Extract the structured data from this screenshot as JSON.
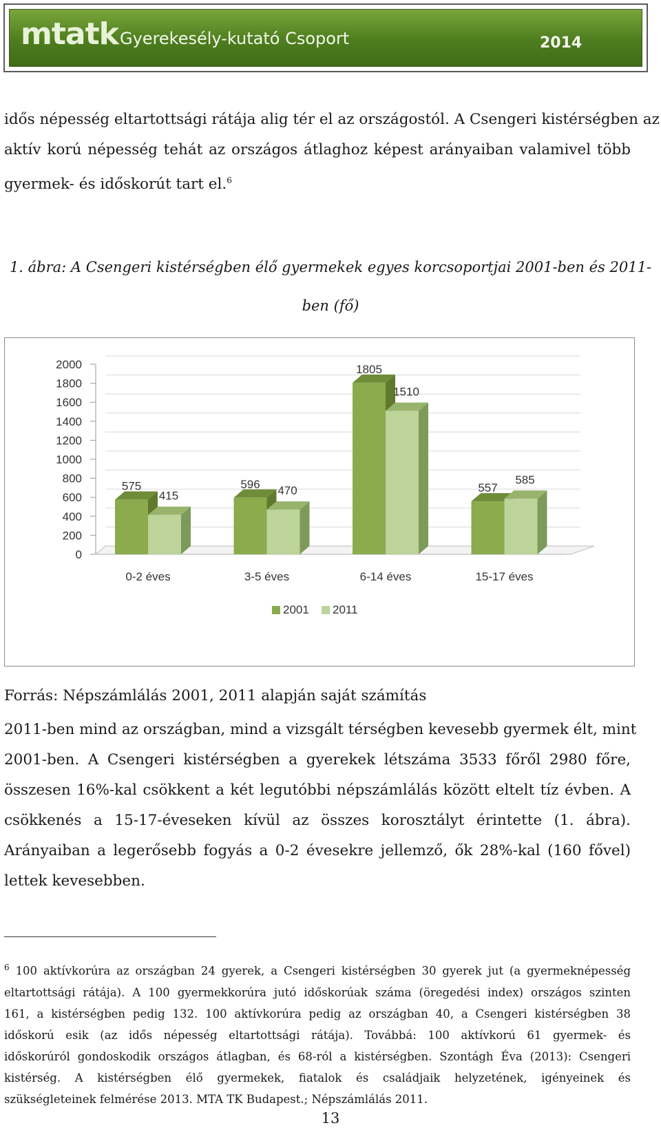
{
  "header": {
    "logo_text": "mtatk",
    "group_name": "Gyerekesély-kutató Csoport",
    "year": "2014"
  },
  "intro": {
    "lines": [
      "idős népesség eltartottsági rátája alig tér el az országostól. A Csengeri kistérségben az",
      "aktív korú népesség tehát az országos átlaghoz képest arányaiban valamivel több",
      "gyermek- és időskorút tart el."
    ],
    "footnote_ref": "6"
  },
  "figure_caption": {
    "line1": "1. ábra: A Csengeri kistérségben élő gyermekek egyes korcsoportjai 2001-ben és 2011-",
    "line2": "ben (fő)"
  },
  "chart_data": {
    "type": "bar",
    "categories": [
      "0-2 éves",
      "3-5 éves",
      "6-14 éves",
      "15-17 éves"
    ],
    "series": [
      {
        "name": "2001",
        "values": [
          575,
          596,
          1805,
          557
        ]
      },
      {
        "name": "2011",
        "values": [
          415,
          470,
          1510,
          585
        ]
      }
    ],
    "y_ticks": [
      0,
      200,
      400,
      600,
      800,
      1000,
      1200,
      1400,
      1600,
      1800,
      2000
    ],
    "ylim": [
      0,
      2000
    ],
    "legend_position": "bottom",
    "colors": {
      "s2001_front": "#8bab4d",
      "s2001_side": "#5f7a2c",
      "s2001_top": "#6f8c38",
      "s2011_front": "#bcd39a",
      "s2011_side": "#7e9a5a",
      "s2011_top": "#98b46c"
    }
  },
  "source": "Forrás: Népszámlálás 2001, 2011 alapján saját számítás",
  "body": {
    "lines": [
      "2011-ben mind az országban, mind a vizsgált térségben kevesebb gyermek élt, mint",
      "2001-ben. A Csengeri kistérségben a gyerekek létszáma 3533 főről 2980 főre,",
      "összesen 16%-kal csökkent a két legutóbbi népszámlálás között eltelt tíz évben. A",
      "csökkenés a 15-17-éveseken kívül az összes korosztályt érintette (1. ábra).",
      "Arányaiban a legerősebb fogyás a 0-2 évesekre jellemző, ők 28%-kal (160 fővel)",
      "lettek kevesebben."
    ]
  },
  "footnote": {
    "marker": "6",
    "lines": [
      "100 aktívkorúra az országban 24 gyerek, a Csengeri kistérségben 30 gyerek jut (a gyermeknépesség",
      "eltartottsági rátája). A 100 gyermekkorúra jutó időskorúak száma (öregedési index) országos szinten",
      "161, a kistérségben pedig 132. 100 aktívkorúra pedig az országban 40, a Csengeri kistérségben 38",
      "időskorú esik (az idős népesség eltartottsági rátája). Továbbá: 100 aktívkorú 61 gyermek- és",
      "időskorúról gondoskodik országos átlagban, és 68-ról a kistérségben. Szontágh Éva (2013): Csengeri",
      "kistérség. A kistérségben élő gyermekek, fiatalok és családjaik helyzetének, igényeinek és",
      "szükségleteinek felmérése 2013. MTA TK Budapest.; Népszámlálás 2011."
    ]
  },
  "page_number": "13"
}
